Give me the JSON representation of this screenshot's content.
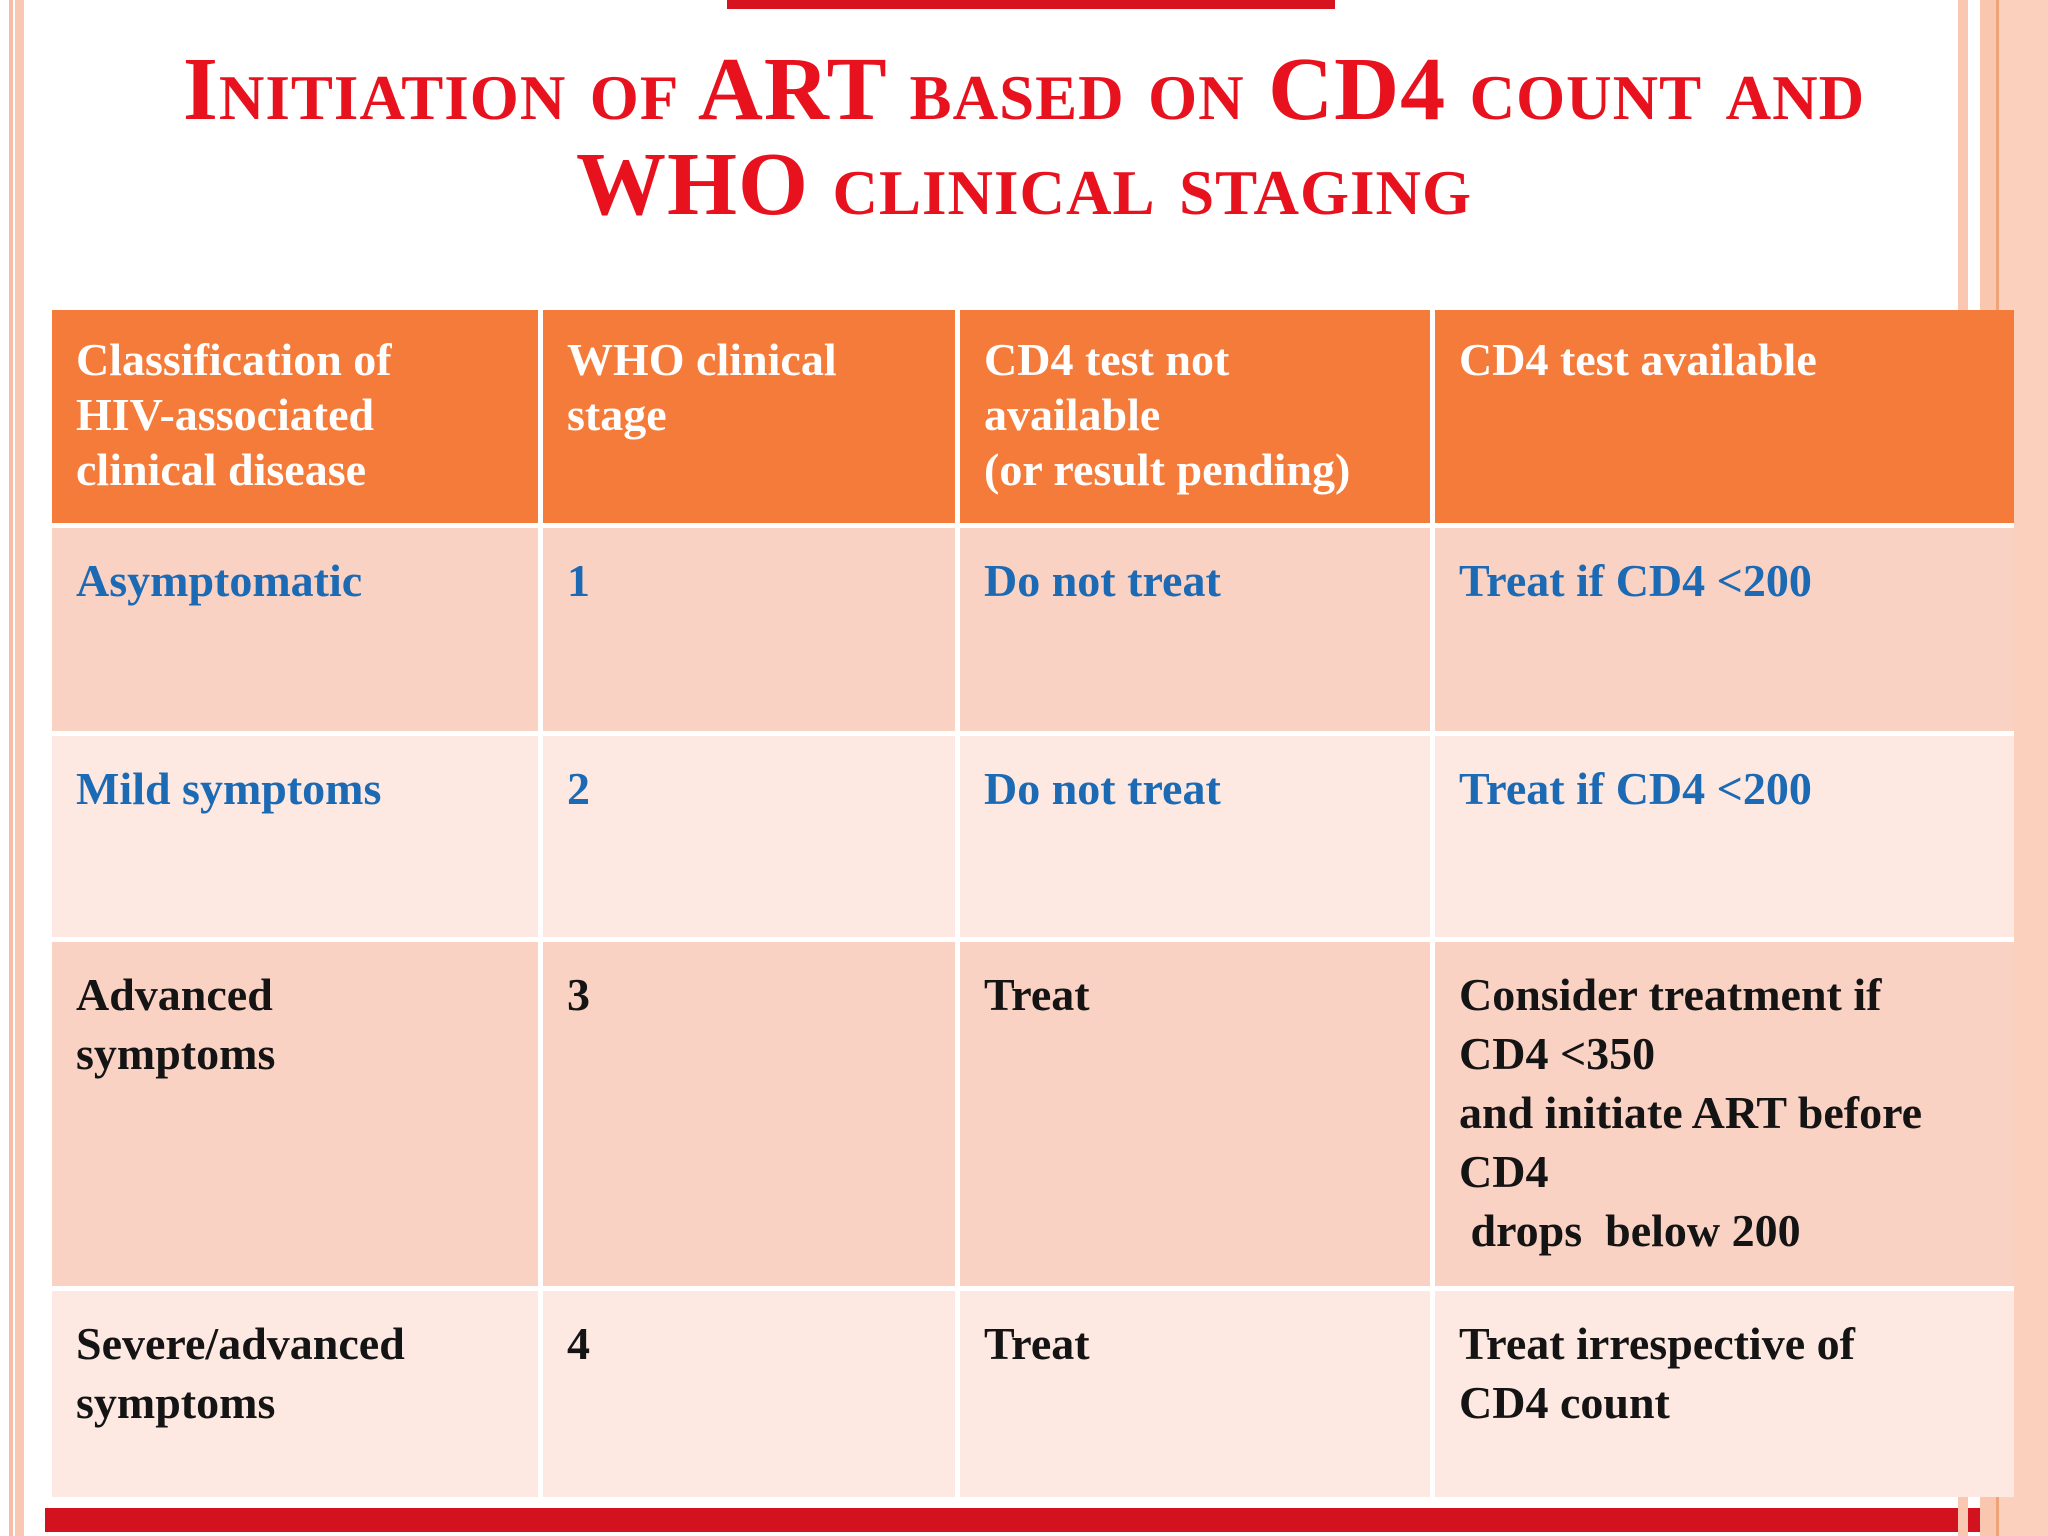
{
  "slide": {
    "title_line1": "Initiation of ART based on CD4 count and",
    "title_line2": "WHO clinical staging"
  },
  "table": {
    "headers": [
      "Classification of\nHIV-associated\nclinical disease",
      "WHO clinical\nstage",
      "CD4 test not\navailable\n(or result pending)",
      "CD4 test available"
    ],
    "rows": [
      {
        "cells": [
          "Asymptomatic",
          "1",
          "Do not treat",
          "Treat if CD4 <200"
        ],
        "text_color": "blue"
      },
      {
        "cells": [
          "Mild symptoms",
          "2",
          "Do not treat",
          "Treat if CD4 <200"
        ],
        "text_color": "blue"
      },
      {
        "cells": [
          "Advanced\nsymptoms",
          "3",
          "Treat",
          "Consider treatment if\nCD4 <350\nand initiate ART before\nCD4\n drops  below 200"
        ],
        "text_color": "black"
      },
      {
        "cells": [
          "Severe/advanced\nsymptoms",
          "4",
          "Treat",
          "Treat irrespective of\nCD4 count"
        ],
        "text_color": "black"
      }
    ]
  },
  "colors": {
    "title_red": "#E8121F",
    "accent_bar_red": "#D31220",
    "header_orange": "#F57B3A",
    "row_dark_pink": "#FAD2C4",
    "row_light_pink": "#FDE9E2",
    "cell_text_blue": "#1C69B4",
    "cell_text_black": "#141414",
    "border_stripe_salmon": "#F9C7B2",
    "border_stripe_line": "#F0A377"
  }
}
